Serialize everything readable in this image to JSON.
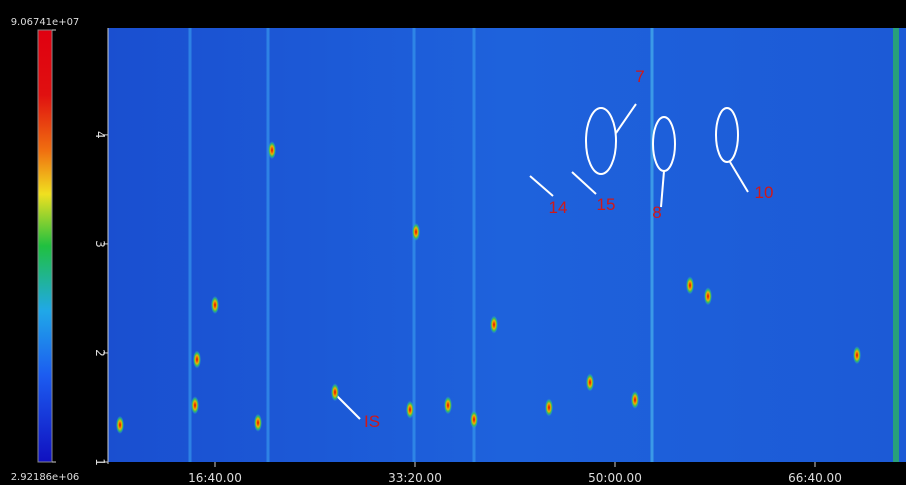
{
  "chart_data": {
    "type": "heatmap",
    "xlim": [
      465,
      4455
    ],
    "ylim": [
      1,
      4.98
    ],
    "xticks": [
      {
        "value": 1000,
        "label": "16:40.00"
      },
      {
        "value": 2000,
        "label": "33:20.00"
      },
      {
        "value": 3000,
        "label": "50:00.00"
      },
      {
        "value": 4000,
        "label": "66:40.00"
      }
    ],
    "yticks": [
      1,
      2,
      3,
      4
    ],
    "clim": [
      2921860,
      90674100
    ],
    "colorbar_ticks": [
      {
        "value": 90674100,
        "label": "9.06741e+07"
      },
      {
        "value": 2921860,
        "label": "2.92186e+06"
      }
    ],
    "peaks": {
      "x": [
        900,
        1285,
        1000,
        2005,
        1600,
        1975,
        2295,
        2165,
        2395,
        2875,
        3100,
        2670,
        3375,
        3465,
        4210,
        910,
        1215,
        525
      ],
      "y": [
        1.52,
        3.86,
        2.44,
        3.11,
        1.64,
        1.48,
        1.39,
        1.52,
        2.26,
        1.73,
        1.57,
        1.5,
        2.62,
        2.52,
        1.98,
        1.94,
        1.36,
        1.34
      ]
    },
    "annotations": [
      "7",
      "14",
      "15",
      "8",
      "10",
      "IS"
    ]
  }
}
